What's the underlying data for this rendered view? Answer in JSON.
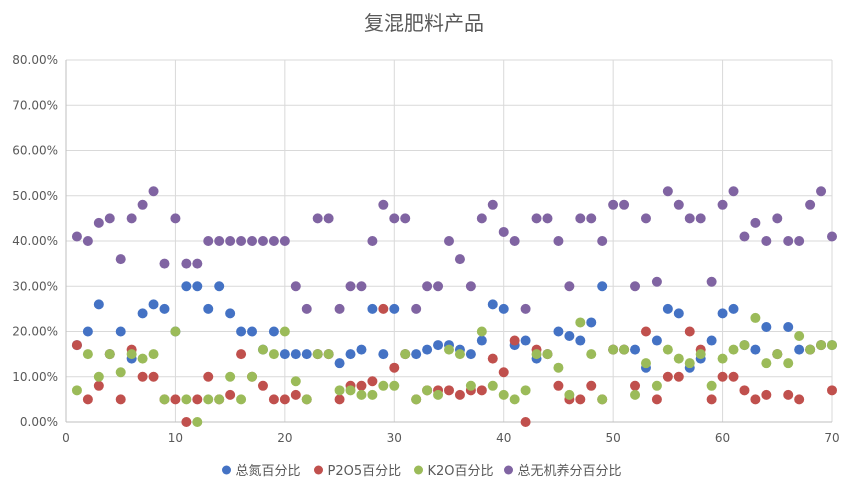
{
  "chart_data": {
    "type": "scatter",
    "title": "复混肥料产品",
    "xlabel": "",
    "ylabel": "",
    "xlim": [
      0,
      70
    ],
    "ylim": [
      0,
      0.8
    ],
    "x_ticks": [
      0,
      10,
      20,
      30,
      40,
      50,
      60,
      70
    ],
    "x_tick_labels": [
      "0",
      "10",
      "20",
      "30",
      "40",
      "50",
      "60",
      "70"
    ],
    "y_ticks": [
      0,
      0.1,
      0.2,
      0.3,
      0.4,
      0.5,
      0.6,
      0.7,
      0.8
    ],
    "y_tick_labels": [
      "0.00%",
      "10.00%",
      "20.00%",
      "30.00%",
      "40.00%",
      "50.00%",
      "60.00%",
      "70.00%",
      "80.00%"
    ],
    "grid": true,
    "legend_position": "bottom",
    "x": [
      1,
      2,
      3,
      4,
      5,
      6,
      7,
      8,
      9,
      10,
      11,
      12,
      13,
      14,
      15,
      16,
      17,
      18,
      19,
      20,
      21,
      22,
      23,
      24,
      25,
      26,
      27,
      28,
      29,
      30,
      31,
      32,
      33,
      34,
      35,
      36,
      37,
      38,
      39,
      40,
      41,
      42,
      43,
      44,
      45,
      46,
      47,
      48,
      49,
      50,
      51,
      52,
      53,
      54,
      55,
      56,
      57,
      58,
      59,
      60,
      61,
      62,
      63,
      64,
      65,
      66,
      67,
      68,
      69,
      70
    ],
    "series": [
      {
        "name": "总氮百分比",
        "color": "#4472c4",
        "values": [
          0.17,
          0.2,
          0.26,
          0.15,
          0.2,
          0.14,
          0.24,
          0.26,
          0.25,
          0.2,
          0.3,
          0.3,
          0.25,
          0.3,
          0.24,
          0.2,
          0.2,
          0.16,
          0.2,
          0.15,
          0.15,
          0.15,
          0.15,
          0.15,
          0.13,
          0.15,
          0.16,
          0.25,
          0.15,
          0.25,
          0.15,
          0.15,
          0.16,
          0.17,
          0.17,
          0.16,
          0.15,
          0.18,
          0.26,
          0.25,
          0.17,
          0.18,
          0.14,
          0.15,
          0.2,
          0.19,
          0.18,
          0.22,
          0.3,
          0.16,
          0.16,
          0.16,
          0.12,
          0.18,
          0.25,
          0.24,
          0.12,
          0.14,
          0.18,
          0.24,
          0.25,
          0.17,
          0.16,
          0.21,
          0.15,
          0.21,
          0.16,
          0.16,
          0.17,
          0.17
        ]
      },
      {
        "name": "P2O5百分比",
        "color": "#c0504d",
        "values": [
          0.17,
          0.05,
          0.08,
          0.15,
          0.05,
          0.16,
          0.1,
          0.1,
          0.05,
          0.05,
          0.0,
          0.05,
          0.1,
          0.05,
          0.06,
          0.15,
          0.1,
          0.08,
          0.05,
          0.05,
          0.06,
          0.05,
          0.15,
          0.15,
          0.05,
          0.08,
          0.08,
          0.09,
          0.25,
          0.12,
          0.15,
          0.05,
          0.07,
          0.07,
          0.07,
          0.06,
          0.07,
          0.07,
          0.14,
          0.11,
          0.18,
          0.0,
          0.16,
          0.15,
          0.08,
          0.05,
          0.05,
          0.08,
          0.05,
          0.16,
          0.16,
          0.08,
          0.2,
          0.05,
          0.1,
          0.1,
          0.2,
          0.16,
          0.05,
          0.1,
          0.1,
          0.07,
          0.05,
          0.06,
          0.15,
          0.06,
          0.05,
          0.16,
          0.17,
          0.07
        ]
      },
      {
        "name": "K2O百分比",
        "color": "#9bbb59",
        "values": [
          0.07,
          0.15,
          0.1,
          0.15,
          0.11,
          0.15,
          0.14,
          0.15,
          0.05,
          0.2,
          0.05,
          0.0,
          0.05,
          0.05,
          0.1,
          0.05,
          0.1,
          0.16,
          0.15,
          0.2,
          0.09,
          0.05,
          0.15,
          0.15,
          0.07,
          0.07,
          0.06,
          0.06,
          0.08,
          0.08,
          0.15,
          0.05,
          0.07,
          0.06,
          0.16,
          0.15,
          0.08,
          0.2,
          0.08,
          0.06,
          0.05,
          0.07,
          0.15,
          0.15,
          0.12,
          0.06,
          0.22,
          0.15,
          0.05,
          0.16,
          0.16,
          0.06,
          0.13,
          0.08,
          0.16,
          0.14,
          0.13,
          0.15,
          0.08,
          0.14,
          0.16,
          0.17,
          0.23,
          0.13,
          0.15,
          0.13,
          0.19,
          0.16,
          0.17,
          0.17
        ]
      },
      {
        "name": "总无机养分百分比",
        "color": "#8064a2",
        "values": [
          0.41,
          0.4,
          0.44,
          0.45,
          0.36,
          0.45,
          0.48,
          0.51,
          0.35,
          0.45,
          0.35,
          0.35,
          0.4,
          0.4,
          0.4,
          0.4,
          0.4,
          0.4,
          0.4,
          0.4,
          0.3,
          0.25,
          0.45,
          0.45,
          0.25,
          0.3,
          0.3,
          0.4,
          0.48,
          0.45,
          0.45,
          0.25,
          0.3,
          0.3,
          0.4,
          0.36,
          0.3,
          0.45,
          0.48,
          0.42,
          0.4,
          0.25,
          0.45,
          0.45,
          0.4,
          0.3,
          0.45,
          0.45,
          0.4,
          0.48,
          0.48,
          0.3,
          0.45,
          0.31,
          0.51,
          0.48,
          0.45,
          0.45,
          0.31,
          0.48,
          0.51,
          0.41,
          0.44,
          0.4,
          0.45,
          0.4,
          0.4,
          0.48,
          0.51,
          0.41
        ]
      }
    ]
  }
}
